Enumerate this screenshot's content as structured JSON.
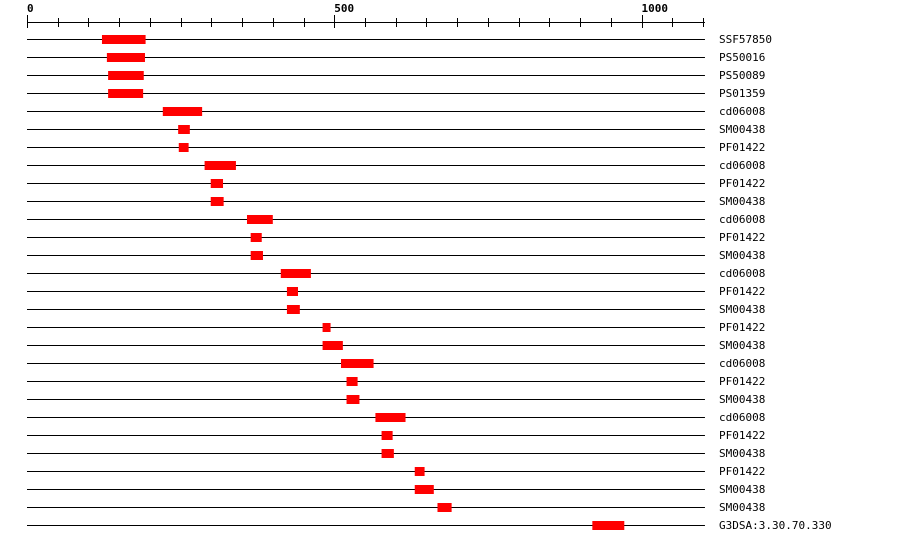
{
  "axis": {
    "min": 0,
    "max": 1100,
    "tick_step": 50,
    "labels": [
      {
        "value": 0,
        "text": "0"
      },
      {
        "value": 500,
        "text": "500"
      },
      {
        "value": 1000,
        "text": "1000"
      }
    ]
  },
  "colors": {
    "feature": "#ff0000",
    "line": "#000000"
  },
  "chart_data": {
    "type": "bar",
    "tracks": [
      {
        "label": "SSF57850",
        "start": 122,
        "end": 193
      },
      {
        "label": "PS50016",
        "start": 130,
        "end": 192
      },
      {
        "label": "PS50089",
        "start": 132,
        "end": 190
      },
      {
        "label": "PS01359",
        "start": 132,
        "end": 189
      },
      {
        "label": "cd06008",
        "start": 221,
        "end": 285
      },
      {
        "label": "SM00438",
        "start": 246,
        "end": 265
      },
      {
        "label": "PF01422",
        "start": 247,
        "end": 263
      },
      {
        "label": "cd06008",
        "start": 289,
        "end": 340
      },
      {
        "label": "PF01422",
        "start": 299,
        "end": 319
      },
      {
        "label": "SM00438",
        "start": 299,
        "end": 320
      },
      {
        "label": "cd06008",
        "start": 358,
        "end": 400
      },
      {
        "label": "PF01422",
        "start": 364,
        "end": 382
      },
      {
        "label": "SM00438",
        "start": 364,
        "end": 384
      },
      {
        "label": "cd06008",
        "start": 413,
        "end": 462
      },
      {
        "label": "PF01422",
        "start": 423,
        "end": 441
      },
      {
        "label": "SM00438",
        "start": 423,
        "end": 444
      },
      {
        "label": "PF01422",
        "start": 481,
        "end": 494
      },
      {
        "label": "SM00438",
        "start": 481,
        "end": 514
      },
      {
        "label": "cd06008",
        "start": 511,
        "end": 564
      },
      {
        "label": "PF01422",
        "start": 520,
        "end": 538
      },
      {
        "label": "SM00438",
        "start": 520,
        "end": 541
      },
      {
        "label": "cd06008",
        "start": 567,
        "end": 616
      },
      {
        "label": "PF01422",
        "start": 577,
        "end": 595
      },
      {
        "label": "SM00438",
        "start": 577,
        "end": 597
      },
      {
        "label": "PF01422",
        "start": 631,
        "end": 647
      },
      {
        "label": "SM00438",
        "start": 631,
        "end": 662
      },
      {
        "label": "SM00438",
        "start": 668,
        "end": 691
      },
      {
        "label": "G3DSA:3.30.70.330",
        "start": 920,
        "end": 972
      }
    ]
  }
}
